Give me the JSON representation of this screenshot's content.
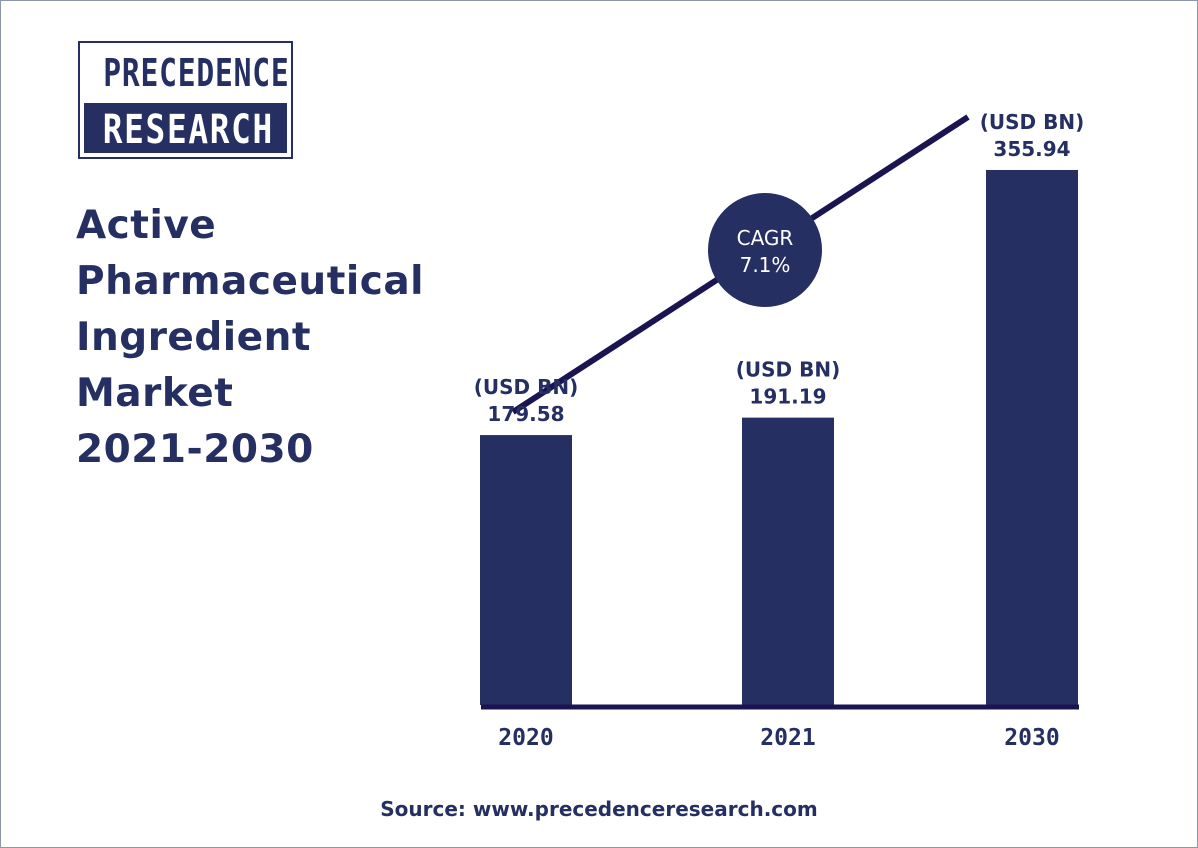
{
  "logo": {
    "line1": "PRECEDENCE",
    "line2": "RESEARCH"
  },
  "title_lines": [
    "Active",
    "Pharmaceutical",
    "Ingredient",
    "Market",
    "2021-2030"
  ],
  "cagr": {
    "label": "CAGR",
    "value": "7.1%"
  },
  "source": "Source: www.precedenceresearch.com",
  "colors": {
    "bar": "#252f62",
    "line": "#1a1450",
    "text": "#252f62",
    "background": "#ffffff"
  },
  "chart_data": {
    "type": "bar",
    "categories": [
      "2020",
      "2021",
      "2030"
    ],
    "values": [
      179.58,
      191.19,
      355.94
    ],
    "value_labels": [
      "179.58",
      "191.19",
      "355.94"
    ],
    "unit_label": "(USD BN)",
    "title": "Active Pharmaceutical Ingredient Market 2021-2030",
    "xlabel": "",
    "ylabel": "",
    "annotations": [
      {
        "text": "CAGR 7.1%"
      }
    ],
    "grid": false
  }
}
